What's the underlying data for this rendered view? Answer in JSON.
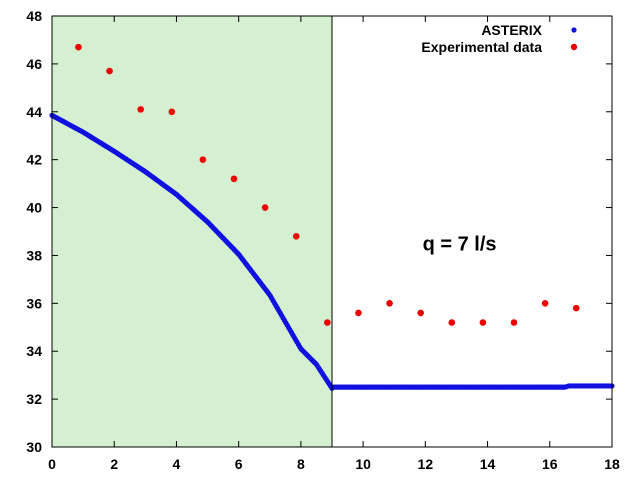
{
  "chart_data": {
    "type": "scatter",
    "title": "",
    "xlabel": "",
    "ylabel": "",
    "xlim": [
      0,
      18
    ],
    "ylim": [
      30,
      48
    ],
    "x_ticks": [
      "0",
      "2",
      "4",
      "6",
      "8",
      "10",
      "12",
      "14",
      "16",
      "18"
    ],
    "y_ticks": [
      "30",
      "32",
      "34",
      "36",
      "38",
      "40",
      "42",
      "44",
      "46",
      "48"
    ],
    "grid": false,
    "legend_position": "top-right",
    "shaded_region": {
      "x_start": 0,
      "x_end": 9,
      "color": "#d5f0d0"
    },
    "colors": {
      "asterix": "#1010e0",
      "experimental": "#ee0000"
    },
    "annotation": {
      "text": "q = 7 l/s",
      "x": 13.1,
      "y": 38.2
    },
    "series": [
      {
        "name": "ASTERIX",
        "color": "#1010e0",
        "segments": [
          {
            "from": 0,
            "to": 9,
            "x": [
              0,
              1,
              2,
              3,
              4,
              5,
              6,
              7,
              8,
              8.5,
              9
            ],
            "y": [
              43.85,
              43.15,
              42.35,
              41.5,
              40.55,
              39.4,
              38.05,
              36.35,
              34.1,
              33.45,
              32.45
            ]
          },
          {
            "from": 9,
            "to": 18,
            "x": [
              9,
              16.5,
              16.6,
              18
            ],
            "y": [
              32.5,
              32.5,
              32.55,
              32.55
            ]
          }
        ]
      },
      {
        "name": "Experimental data",
        "color": "#ee0000",
        "x": [
          0.85,
          1.85,
          2.85,
          3.85,
          4.85,
          5.85,
          6.85,
          7.85,
          8.85,
          9.85,
          10.85,
          11.85,
          12.85,
          13.85,
          14.85,
          15.85,
          16.85
        ],
        "y": [
          46.7,
          45.7,
          44.1,
          44.0,
          42.0,
          41.2,
          40.0,
          38.8,
          35.2,
          35.6,
          36.0,
          35.6,
          35.2,
          35.2,
          35.2,
          36.0,
          35.8
        ]
      }
    ]
  }
}
